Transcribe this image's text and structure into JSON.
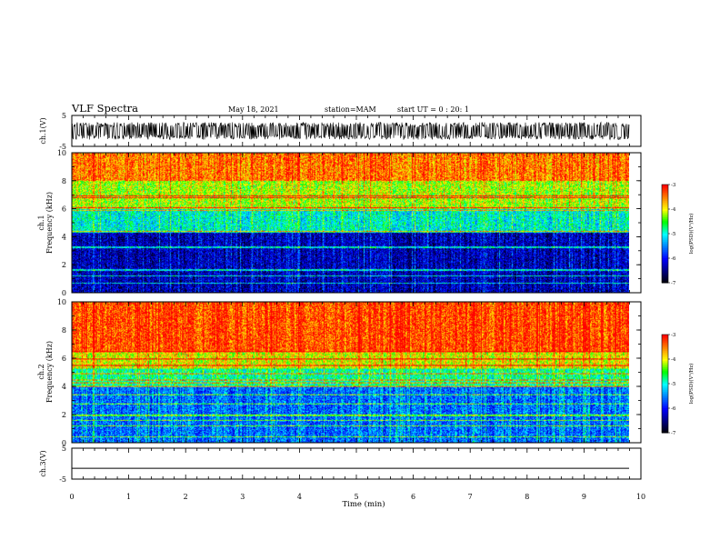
{
  "header": {
    "title": "VLF Spectra",
    "date": "May 18, 2021",
    "station": "station=MAM",
    "start": "start UT =  0 : 20: 1"
  },
  "chart_data": [
    {
      "type": "line",
      "name": "ch1-waveform",
      "ylabel": "ch.1(V)",
      "ylim": [
        -5,
        5
      ],
      "yticks": [
        -5,
        5
      ],
      "xlim": [
        0,
        10
      ],
      "note_signal": "dense oscillation roughly between -2.5 V and 2.5 V"
    },
    {
      "type": "heatmap",
      "name": "ch1-spectrogram",
      "ylabel": "ch.1\nFrequency (kHz)",
      "ylim": [
        0,
        10
      ],
      "yticks": [
        0,
        2,
        4,
        6,
        8,
        10
      ],
      "xlim": [
        0,
        9.83
      ],
      "colorbar": {
        "label": "log(PSD)(V²/Hz)",
        "range": [
          -7,
          -3
        ],
        "ticks": [
          -3,
          -4,
          -5,
          -6,
          -7
        ]
      },
      "bands": [
        {
          "freq_from": 0,
          "freq_to": 4.3,
          "log_psd": -6.3
        },
        {
          "freq_from": 4.3,
          "freq_to": 6,
          "log_psd": -5.0
        },
        {
          "freq_from": 6,
          "freq_to": 8,
          "log_psd": -4.2
        },
        {
          "freq_from": 8,
          "freq_to": 10,
          "log_psd": -3.5
        }
      ]
    },
    {
      "type": "heatmap",
      "name": "ch2-spectrogram",
      "ylabel": "ch.2\nFrequency (kHz)",
      "ylim": [
        0,
        10
      ],
      "yticks": [
        0,
        2,
        4,
        6,
        8,
        10
      ],
      "xlim": [
        0,
        9.83
      ],
      "colorbar": {
        "label": "log(PSD)(V²/Hz)",
        "range": [
          -7,
          -3
        ],
        "ticks": [
          -3,
          -4,
          -5,
          -6,
          -7
        ]
      },
      "bands": [
        {
          "freq_from": 0,
          "freq_to": 4,
          "log_psd": -5.6
        },
        {
          "freq_from": 4,
          "freq_to": 5.3,
          "log_psd": -4.8
        },
        {
          "freq_from": 5.3,
          "freq_to": 6.5,
          "log_psd": -4.0
        },
        {
          "freq_from": 6.5,
          "freq_to": 10,
          "log_psd": -3.3
        }
      ]
    },
    {
      "type": "line",
      "name": "ch3-waveform",
      "ylabel": "ch.3(V)",
      "ylim": [
        -5,
        5
      ],
      "yticks": [
        -5,
        5
      ],
      "xlim": [
        0,
        10
      ],
      "xlabel": "Time (min)",
      "xticks": [
        0,
        1,
        2,
        3,
        4,
        5,
        6,
        7,
        8,
        9,
        10
      ],
      "constant_value": -1.5
    }
  ],
  "colors": {
    "map": [
      "#000000",
      "#00007f",
      "#0000ff",
      "#0080ff",
      "#00ffff",
      "#00ff00",
      "#ffff00",
      "#ff8000",
      "#ff0000",
      "#ffffff"
    ]
  }
}
